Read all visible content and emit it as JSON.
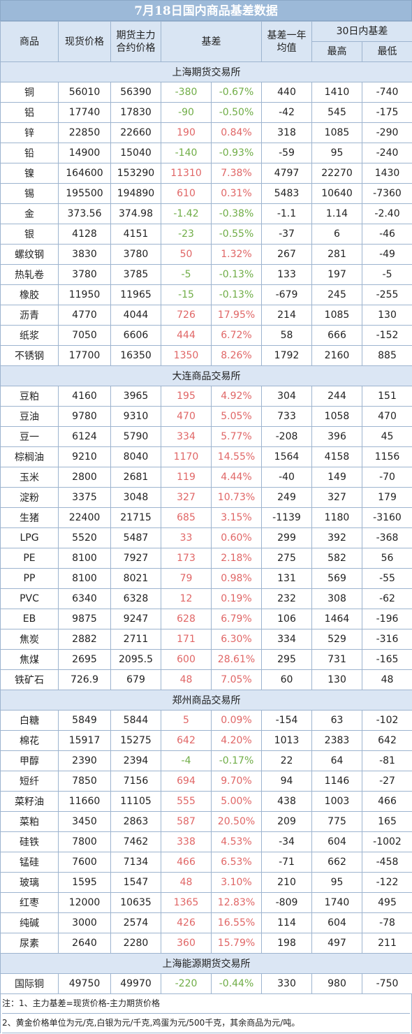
{
  "title": "7月18日国内商品基差数据",
  "headers": {
    "product": "商品",
    "spot": "现货价格",
    "futures": "期货主力合约价格",
    "basis": "基差",
    "basis_year_avg": "基差一年均值",
    "range30": "30日内基差",
    "high": "最高",
    "low": "最低"
  },
  "sections": [
    {
      "name": "上海期货交易所",
      "rows": [
        [
          "铜",
          "56010",
          "56390",
          "-380",
          "-0.67%",
          "440",
          "1410",
          "-740"
        ],
        [
          "铝",
          "17740",
          "17830",
          "-90",
          "-0.50%",
          "-42",
          "545",
          "-175"
        ],
        [
          "锌",
          "22850",
          "22660",
          "190",
          "0.84%",
          "318",
          "1085",
          "-290"
        ],
        [
          "铅",
          "14900",
          "15040",
          "-140",
          "-0.93%",
          "-59",
          "95",
          "-240"
        ],
        [
          "镍",
          "164600",
          "153290",
          "11310",
          "7.38%",
          "4797",
          "22270",
          "1430"
        ],
        [
          "锡",
          "195500",
          "194890",
          "610",
          "0.31%",
          "5483",
          "10640",
          "-7360"
        ],
        [
          "金",
          "373.56",
          "374.98",
          "-1.42",
          "-0.38%",
          "-1.1",
          "1.14",
          "-2.40"
        ],
        [
          "银",
          "4128",
          "4151",
          "-23",
          "-0.55%",
          "-37",
          "6",
          "-46"
        ],
        [
          "螺纹钢",
          "3830",
          "3780",
          "50",
          "1.32%",
          "267",
          "281",
          "-49"
        ],
        [
          "热轧卷",
          "3780",
          "3785",
          "-5",
          "-0.13%",
          "133",
          "197",
          "-5"
        ],
        [
          "橡胶",
          "11950",
          "11965",
          "-15",
          "-0.13%",
          "-679",
          "245",
          "-255"
        ],
        [
          "沥青",
          "4770",
          "4044",
          "726",
          "17.95%",
          "214",
          "1085",
          "130"
        ],
        [
          "纸浆",
          "7050",
          "6606",
          "444",
          "6.72%",
          "58",
          "666",
          "-152"
        ],
        [
          "不锈钢",
          "17700",
          "16350",
          "1350",
          "8.26%",
          "1792",
          "2160",
          "885"
        ]
      ]
    },
    {
      "name": "大连商品交易所",
      "rows": [
        [
          "豆粕",
          "4160",
          "3965",
          "195",
          "4.92%",
          "304",
          "244",
          "151"
        ],
        [
          "豆油",
          "9780",
          "9310",
          "470",
          "5.05%",
          "733",
          "1058",
          "470"
        ],
        [
          "豆一",
          "6124",
          "5790",
          "334",
          "5.77%",
          "-208",
          "396",
          "45"
        ],
        [
          "棕榈油",
          "9210",
          "8040",
          "1170",
          "14.55%",
          "1564",
          "4158",
          "1156"
        ],
        [
          "玉米",
          "2800",
          "2681",
          "119",
          "4.44%",
          "-40",
          "149",
          "-70"
        ],
        [
          "淀粉",
          "3375",
          "3048",
          "327",
          "10.73%",
          "249",
          "327",
          "179"
        ],
        [
          "生猪",
          "22400",
          "21715",
          "685",
          "3.15%",
          "-1139",
          "1180",
          "-3160"
        ],
        [
          "LPG",
          "5520",
          "5487",
          "33",
          "0.60%",
          "299",
          "392",
          "-368"
        ],
        [
          "PE",
          "8100",
          "7927",
          "173",
          "2.18%",
          "275",
          "582",
          "56"
        ],
        [
          "PP",
          "8100",
          "8021",
          "79",
          "0.98%",
          "131",
          "569",
          "-55"
        ],
        [
          "PVC",
          "6340",
          "6328",
          "12",
          "0.19%",
          "232",
          "308",
          "-62"
        ],
        [
          "EB",
          "9875",
          "9247",
          "628",
          "6.79%",
          "106",
          "1464",
          "-196"
        ],
        [
          "焦炭",
          "2882",
          "2711",
          "171",
          "6.30%",
          "334",
          "529",
          "-316"
        ],
        [
          "焦煤",
          "2695",
          "2095.5",
          "600",
          "28.61%",
          "295",
          "731",
          "-165"
        ],
        [
          "铁矿石",
          "726.9",
          "679",
          "48",
          "7.05%",
          "60",
          "130",
          "48"
        ]
      ]
    },
    {
      "name": "郑州商品交易所",
      "rows": [
        [
          "白糖",
          "5849",
          "5844",
          "5",
          "0.09%",
          "-154",
          "63",
          "-102"
        ],
        [
          "棉花",
          "15917",
          "15275",
          "642",
          "4.20%",
          "1013",
          "2383",
          "642"
        ],
        [
          "甲醇",
          "2390",
          "2394",
          "-4",
          "-0.17%",
          "22",
          "64",
          "-81"
        ],
        [
          "短纤",
          "7850",
          "7156",
          "694",
          "9.70%",
          "94",
          "1146",
          "-27"
        ],
        [
          "菜籽油",
          "11660",
          "11105",
          "555",
          "5.00%",
          "438",
          "1003",
          "466"
        ],
        [
          "菜粕",
          "3450",
          "2863",
          "587",
          "20.50%",
          "209",
          "775",
          "165"
        ],
        [
          "硅铁",
          "7800",
          "7462",
          "338",
          "4.53%",
          "-34",
          "604",
          "-1002"
        ],
        [
          "锰硅",
          "7600",
          "7134",
          "466",
          "6.53%",
          "-71",
          "662",
          "-458"
        ],
        [
          "玻璃",
          "1595",
          "1547",
          "48",
          "3.10%",
          "210",
          "95",
          "-122"
        ],
        [
          "红枣",
          "12000",
          "10635",
          "1365",
          "12.83%",
          "-809",
          "1740",
          "495"
        ],
        [
          "纯碱",
          "3000",
          "2574",
          "426",
          "16.55%",
          "114",
          "604",
          "-78"
        ],
        [
          "尿素",
          "2640",
          "2280",
          "360",
          "15.79%",
          "198",
          "497",
          "211"
        ]
      ]
    },
    {
      "name": "上海能源期货交易所",
      "rows": [
        [
          "国际铜",
          "49750",
          "49970",
          "-220",
          "-0.44%",
          "330",
          "980",
          "-750"
        ]
      ]
    }
  ],
  "notes": [
    "注：1、主力基差=现货价格-主力期货价格",
    "2、黄金价格单位为元/克,白银为元/千克,鸡蛋为元/500千克，其余商品为元/吨。"
  ],
  "colors": {
    "negative": "#70ad47",
    "positive": "#e06666",
    "header_bg": "#d9e5f3",
    "title_bg": "#9cb9d8"
  }
}
